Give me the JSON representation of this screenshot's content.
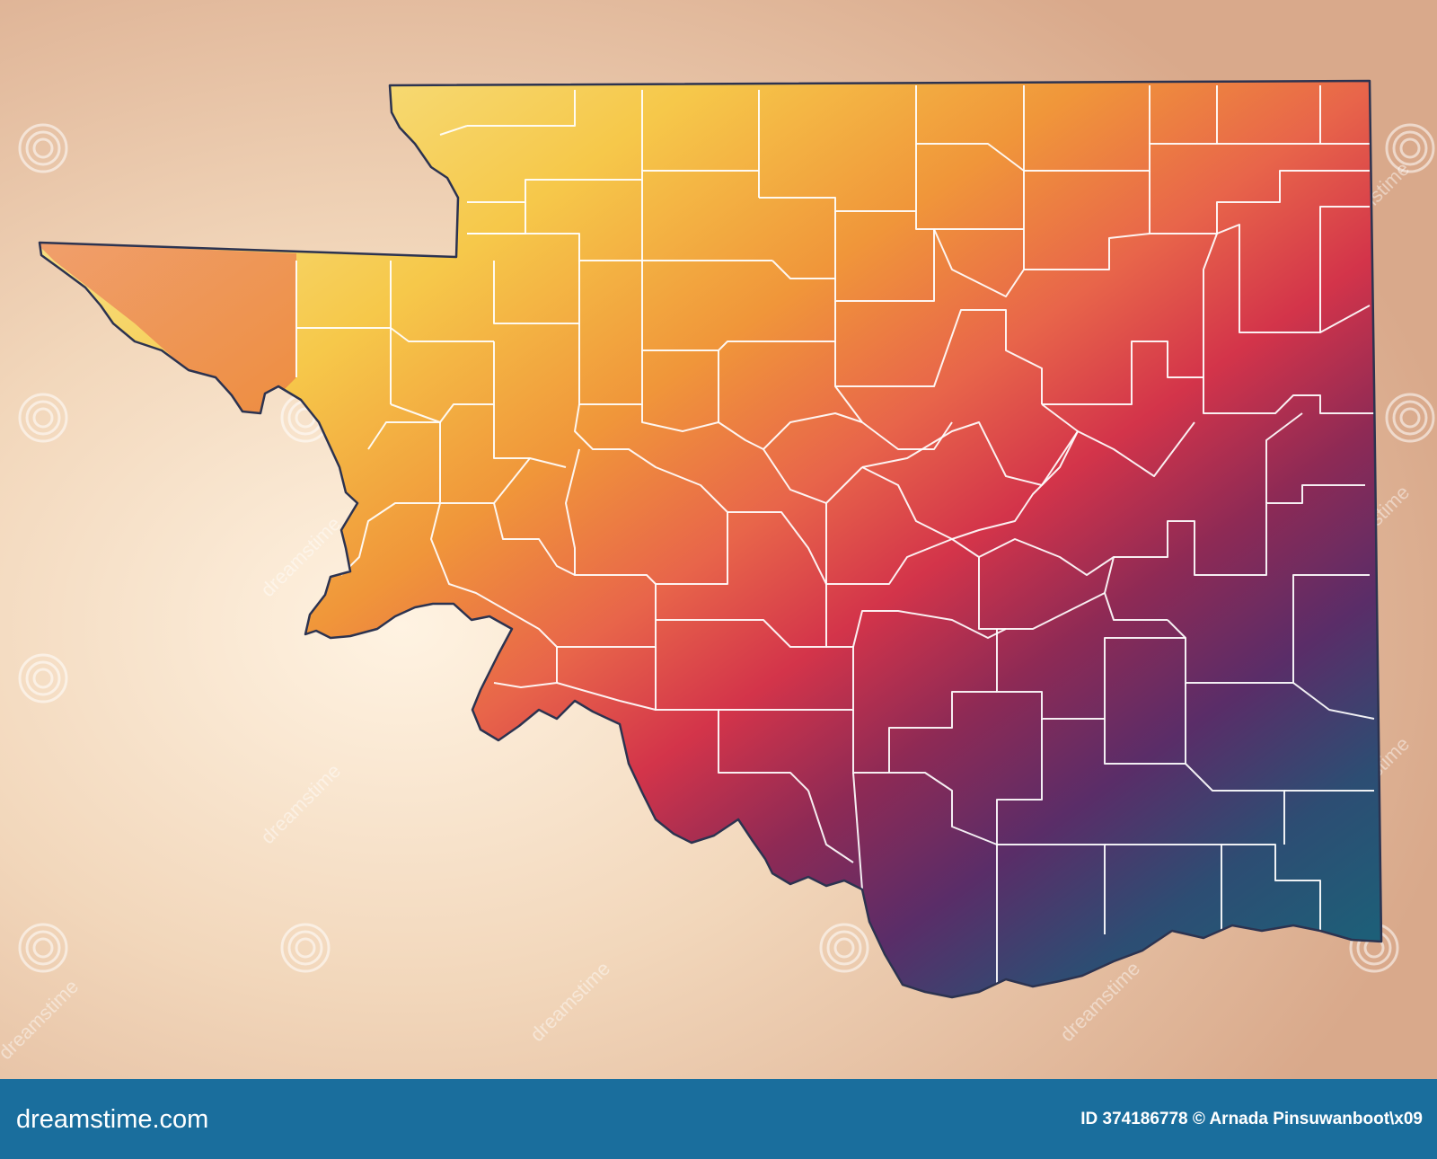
{
  "map": {
    "region": "Oklahoma",
    "county_borders": "white",
    "outline_color": "#2c3350",
    "background_color": "#e7c4a6",
    "color_ramp": [
      "#f7e58e",
      "#f6c84a",
      "#f0963a",
      "#e8654a",
      "#d3344a",
      "#8e2a55",
      "#5a2d68",
      "#2d4d73",
      "#1d5f78"
    ],
    "labels_shown": false
  },
  "watermark": {
    "text": "dreamstime",
    "icon": "dreamstime-swirl-icon"
  },
  "footer": {
    "brand": "dreamstime.com",
    "credit": "ID 374186778 © Arnada Pinsuwanboot\\x09",
    "background_color": "#1a6e9d"
  }
}
